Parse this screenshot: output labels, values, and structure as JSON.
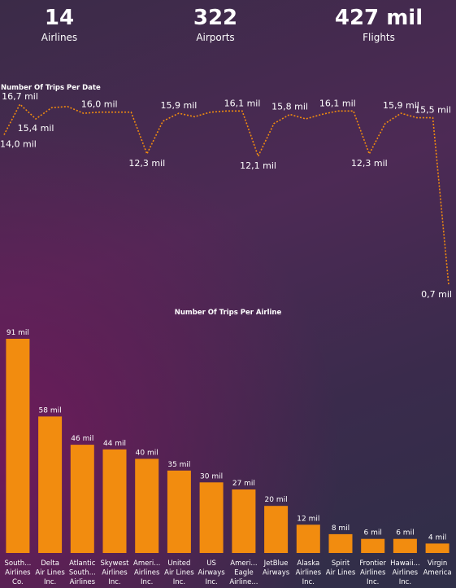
{
  "kpis": [
    {
      "value": "14",
      "label": "Airlines"
    },
    {
      "value": "322",
      "label": "Airports"
    },
    {
      "value": "427 mil",
      "label": "Flights"
    }
  ],
  "colors": {
    "accent": "#f28c0f",
    "text": "#ffffff"
  },
  "chart_data": [
    {
      "type": "line",
      "title": "Number Of Trips Per Date",
      "values": [
        14.0,
        16.7,
        15.4,
        16.4,
        16.5,
        15.9,
        16.0,
        16.0,
        16.0,
        12.3,
        15.2,
        15.9,
        15.6,
        16.0,
        16.1,
        16.1,
        12.1,
        15.0,
        15.8,
        15.4,
        15.8,
        16.1,
        16.1,
        12.3,
        15.0,
        15.9,
        15.5,
        15.5,
        0.7
      ],
      "data_labels": [
        {
          "index": 0,
          "text": "14,0 mil"
        },
        {
          "index": 1,
          "text": "16,7 mil"
        },
        {
          "index": 2,
          "text": "15,4 mil"
        },
        {
          "index": 6,
          "text": "16,0 mil"
        },
        {
          "index": 9,
          "text": "12,3 mil"
        },
        {
          "index": 11,
          "text": "15,9 mil"
        },
        {
          "index": 15,
          "text": "16,1 mil"
        },
        {
          "index": 16,
          "text": "12,1 mil"
        },
        {
          "index": 18,
          "text": "15,8 mil"
        },
        {
          "index": 21,
          "text": "16,1 mil"
        },
        {
          "index": 23,
          "text": "12,3 mil"
        },
        {
          "index": 25,
          "text": "15,9 mil"
        },
        {
          "index": 27,
          "text": "15,5 mil"
        },
        {
          "index": 28,
          "text": "0,7 mil"
        }
      ],
      "ylim": [
        0.7,
        16.7
      ],
      "line_style": "dotted",
      "grid": false
    },
    {
      "type": "bar",
      "title": "Number Of Trips Per Airline",
      "categories": [
        [
          "South...",
          "Airlines",
          "Co."
        ],
        [
          "Delta",
          "Air Lines",
          "Inc."
        ],
        [
          "Atlantic",
          "South...",
          "Airlines"
        ],
        [
          "Skywest",
          "Airlines",
          "Inc."
        ],
        [
          "Ameri...",
          "Airlines",
          "Inc."
        ],
        [
          "United",
          "Air Lines",
          "Inc."
        ],
        [
          "US",
          "Airways",
          "Inc."
        ],
        [
          "Ameri...",
          "Eagle",
          "Airline..."
        ],
        [
          "JetBlue",
          "Airways"
        ],
        [
          "Alaska",
          "Airlines",
          "Inc."
        ],
        [
          "Spirit",
          "Air Lines"
        ],
        [
          "Frontier",
          "Airlines",
          "Inc."
        ],
        [
          "Hawaii...",
          "Airlines",
          "Inc."
        ],
        [
          "Virgin",
          "America"
        ]
      ],
      "values": [
        91,
        58,
        46,
        44,
        40,
        35,
        30,
        27,
        20,
        12,
        8,
        6,
        6,
        4
      ],
      "value_labels": [
        "91 mil",
        "58 mil",
        "46 mil",
        "44 mil",
        "40 mil",
        "35 mil",
        "30 mil",
        "27 mil",
        "20 mil",
        "12 mil",
        "8 mil",
        "6 mil",
        "6 mil",
        "4 mil"
      ],
      "ylim": [
        0,
        91
      ],
      "grid": false
    }
  ]
}
